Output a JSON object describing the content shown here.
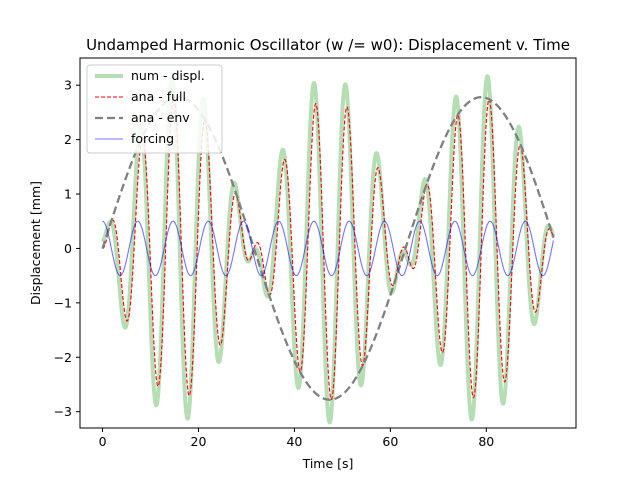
{
  "chart_data": {
    "type": "line",
    "title": "Undamped Harmonic Oscillator (w /= w0): Displacement v. Time",
    "xlabel": "Time [s]",
    "ylabel": "Displacement [mm]",
    "xlim": [
      -4.7,
      98.7
    ],
    "ylim": [
      -3.3,
      3.5
    ],
    "xticks": [
      0,
      20,
      40,
      60,
      80
    ],
    "yticks": [
      -3,
      -2,
      -1,
      0,
      1,
      2,
      3
    ],
    "xtick_labels": [
      "0",
      "20",
      "40",
      "60",
      "80"
    ],
    "ytick_labels": [
      "−3",
      "−2",
      "−1",
      "0",
      "1",
      "2",
      "3"
    ],
    "grid": false,
    "legend_position": "top-left",
    "params": {
      "t_max": 94,
      "envelope_amplitude": 2.78,
      "envelope_angular_frequency": 0.0995,
      "full_angular_frequency": 0.955,
      "numeric_amplitude": 3.08,
      "forcing_amplitude": 0.5,
      "forcing_angular_frequency": 0.8554
    },
    "series": [
      {
        "name": "num - displ.",
        "kind": "numeric",
        "color": "#2ca02c",
        "opacity": 0.35,
        "width": 4.0,
        "dash": ""
      },
      {
        "name": "ana - full",
        "kind": "full",
        "color": "#ff0000",
        "opacity": 1.0,
        "width": 1.1,
        "dash": "4 2"
      },
      {
        "name": "ana - env",
        "kind": "envelope",
        "color": "#808080",
        "opacity": 1.0,
        "width": 2.3,
        "dash": "8 4"
      },
      {
        "name": "forcing",
        "kind": "forcing",
        "color": "#0000ff",
        "opacity": 0.55,
        "width": 1.1,
        "dash": ""
      }
    ]
  }
}
